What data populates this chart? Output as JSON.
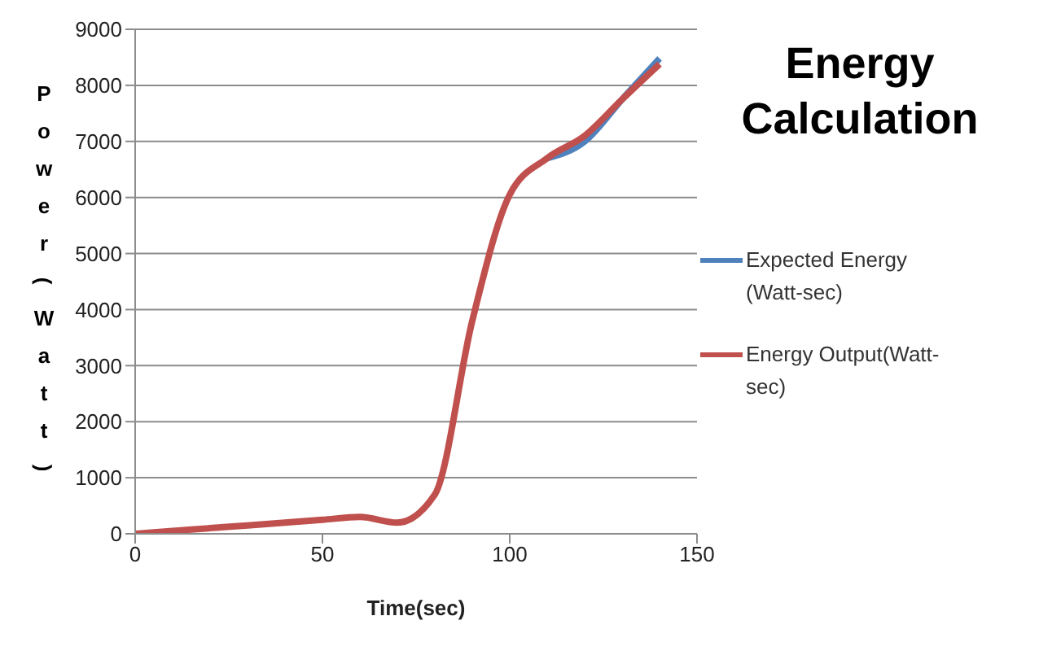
{
  "chart_data": {
    "type": "line",
    "title": "Energy Calculation",
    "xlabel": "Time(sec)",
    "ylabel": "Power(Watt)",
    "x": [
      0,
      10,
      20,
      30,
      40,
      50,
      60,
      70,
      80,
      90,
      100,
      110,
      120,
      130,
      140
    ],
    "series": [
      {
        "name": "Expected Energy (Watt-sec)",
        "color": "#4f81bd",
        "values": [
          null,
          null,
          null,
          null,
          null,
          null,
          null,
          null,
          null,
          null,
          null,
          6700,
          7000,
          7750,
          8480
        ]
      },
      {
        "name": "Energy Output(Watt-sec)",
        "color": "#c0504d",
        "values": [
          0,
          50,
          100,
          150,
          200,
          250,
          300,
          200,
          700,
          3800,
          6050,
          6700,
          7100,
          7750,
          8380
        ]
      }
    ],
    "xlim": [
      0,
      150
    ],
    "xticks": [
      0,
      50,
      100,
      150
    ],
    "ylim": [
      0,
      9000
    ],
    "yticks": [
      0,
      1000,
      2000,
      3000,
      4000,
      5000,
      6000,
      7000,
      8000,
      9000
    ],
    "grid": "y",
    "legend": "right",
    "marker": "none",
    "line_style": "solid"
  }
}
